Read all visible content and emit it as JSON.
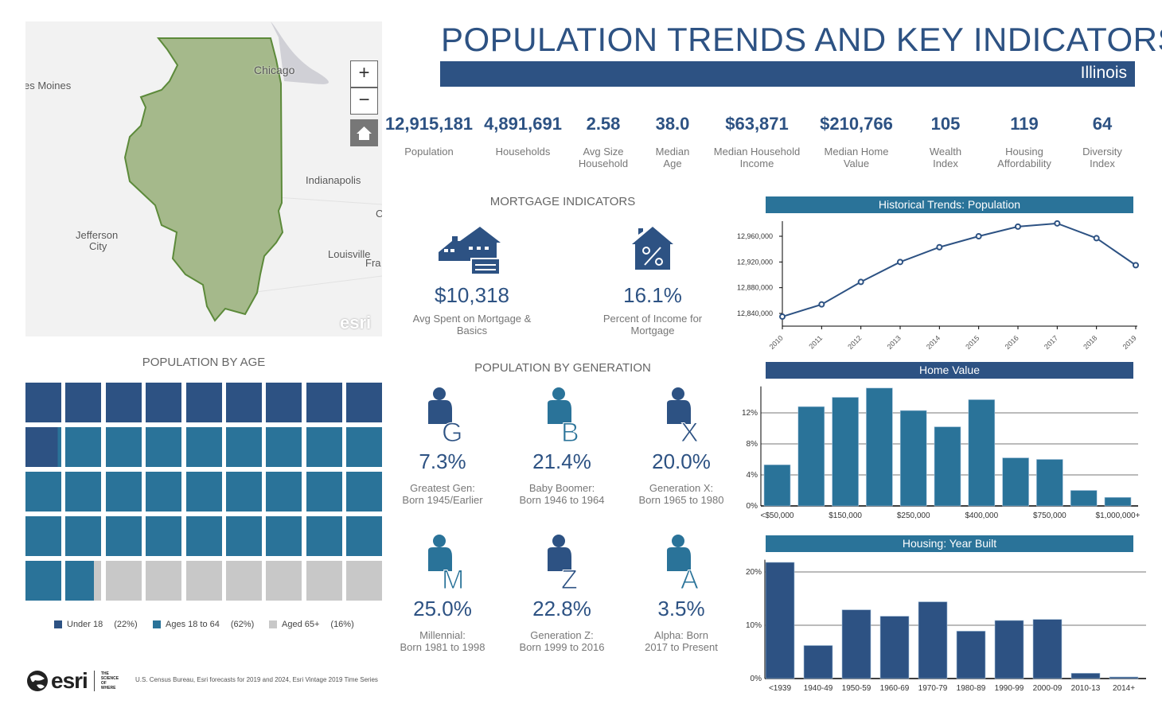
{
  "map": {
    "labels": [
      "Chicago",
      "es Moines",
      "Indianapolis",
      "Jefferson",
      "City",
      "Louisville",
      "Fra",
      "C"
    ],
    "zoom_in": "+",
    "zoom_out": "−",
    "home_icon": "home-icon",
    "attribution": "esri"
  },
  "header": {
    "title": "POPULATION TRENDS AND KEY INDICATORS",
    "state": "Illinois"
  },
  "stats": [
    {
      "value": "12,915,181",
      "label": "Population"
    },
    {
      "value": "4,891,691",
      "label": "Households"
    },
    {
      "value": "2.58",
      "label": "Avg Size Household"
    },
    {
      "value": "38.0",
      "label": "Median Age"
    },
    {
      "value": "$63,871",
      "label": "Median Household Income"
    },
    {
      "value": "$210,766",
      "label": "Median Home Value"
    },
    {
      "value": "105",
      "label": "Wealth Index"
    },
    {
      "value": "119",
      "label": "Housing Affordability"
    },
    {
      "value": "64",
      "label": "Diversity Index"
    }
  ],
  "mortgage": {
    "title": "MORTGAGE INDICATORS",
    "items": [
      {
        "value": "$10,318",
        "label": "Avg Spent on Mortgage & Basics",
        "icon": "house-check-icon"
      },
      {
        "value": "16.1%",
        "label": "Percent of Income for Mortgage",
        "icon": "house-percent-icon"
      }
    ]
  },
  "generation": {
    "title": "POPULATION BY GENERATION",
    "items": [
      {
        "letter": "G",
        "value": "7.3%",
        "label1": "Greatest Gen:",
        "label2": "Born 1945/Earlier",
        "color": "#2d5283"
      },
      {
        "letter": "B",
        "value": "21.4%",
        "label1": "Baby Boomer:",
        "label2": "Born 1946 to 1964",
        "color": "#2a7399"
      },
      {
        "letter": "X",
        "value": "20.0%",
        "label1": "Generation X:",
        "label2": "Born 1965 to 1980",
        "color": "#2d5283"
      },
      {
        "letter": "M",
        "value": "25.0%",
        "label1": "Millennial:",
        "label2": "Born 1981 to 1998",
        "color": "#2a7399"
      },
      {
        "letter": "Z",
        "value": "22.8%",
        "label1": "Generation Z:",
        "label2": "Born 1999 to 2016",
        "color": "#2d5283"
      },
      {
        "letter": "A",
        "value": "3.5%",
        "label1": "Alpha:  Born",
        "label2": "2017 to Present",
        "color": "#2a7399"
      }
    ]
  },
  "age": {
    "title": "POPULATION BY AGE",
    "groups": [
      {
        "label": "Under 18",
        "pct_label": "(22%)",
        "pct": 22,
        "color": "#2d5283"
      },
      {
        "label": "Ages 18 to 64",
        "pct_label": "(62%)",
        "pct": 62,
        "color": "#2a7399"
      },
      {
        "label": "Aged 65+",
        "pct_label": "(16%)",
        "pct": 16,
        "color": "#c8c8c8"
      }
    ]
  },
  "footer": {
    "logo": "esri",
    "tagline": "THE SCIENCE OF WHERE",
    "source": "U.S. Census Bureau, Esri forecasts for 2019 and 2024, Esri Vintage 2019 Time Series"
  },
  "colors": {
    "dark": "#2d5283",
    "teal": "#2a7399",
    "grey": "#c8c8c8"
  },
  "chart_data": [
    {
      "type": "line",
      "title": "Historical Trends: Population",
      "x": [
        "2010",
        "2011",
        "2012",
        "2013",
        "2014",
        "2015",
        "2016",
        "2017",
        "2018",
        "2019"
      ],
      "values": [
        12835000,
        12854000,
        12889000,
        12920000,
        12943000,
        12960000,
        12975000,
        12980000,
        12957000,
        12915000
      ],
      "yticks": [
        "12,840,000",
        "12,880,000",
        "12,920,000",
        "12,960,000"
      ],
      "ytick_values": [
        12840000,
        12880000,
        12920000,
        12960000
      ],
      "ylim": [
        12820000,
        12990000
      ],
      "grid": false
    },
    {
      "type": "bar",
      "title": "Home Value",
      "categories": [
        "<$50,000",
        "",
        "$150,000",
        "",
        "$250,000",
        "",
        "$400,000",
        "",
        "$750,000",
        "",
        "$1,000,000+"
      ],
      "values": [
        5.3,
        12.8,
        14.0,
        15.2,
        12.3,
        10.2,
        13.7,
        6.2,
        6.0,
        2.0,
        1.1
      ],
      "yticks": [
        "0%",
        "4%",
        "8%",
        "12%"
      ],
      "ytick_values": [
        0,
        4,
        8,
        12
      ],
      "ylim": [
        0,
        15.2
      ],
      "grid": true
    },
    {
      "type": "bar",
      "title": "Housing: Year Built",
      "categories": [
        "<1939",
        "1940-49",
        "1950-59",
        "1960-69",
        "1970-79",
        "1980-89",
        "1990-99",
        "2000-09",
        "2010-13",
        "2014+"
      ],
      "values": [
        21.8,
        6.2,
        12.9,
        11.7,
        14.4,
        8.9,
        10.9,
        11.1,
        1.0,
        0.3
      ],
      "yticks": [
        "0%",
        "10%",
        "20%"
      ],
      "ytick_values": [
        0,
        10,
        20
      ],
      "ylim": [
        0,
        22
      ],
      "grid": true
    }
  ]
}
